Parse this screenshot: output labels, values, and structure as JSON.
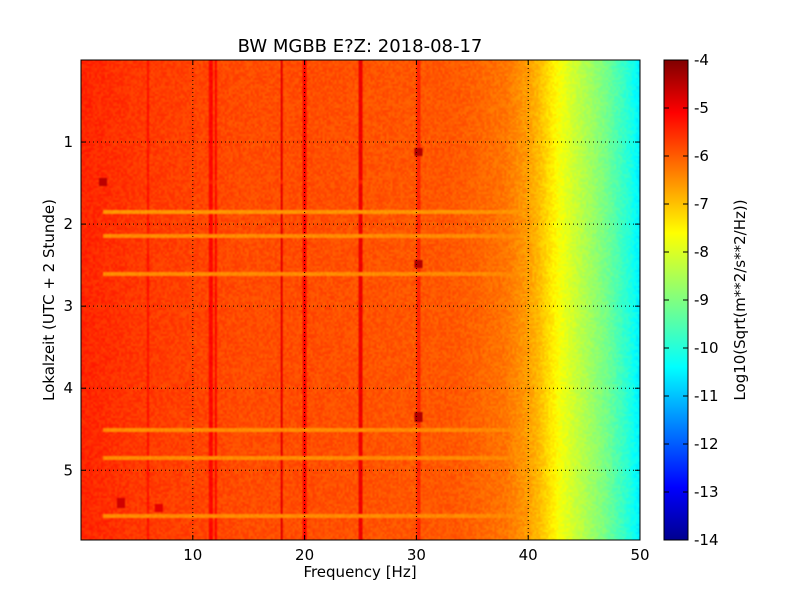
{
  "chart_data": {
    "type": "heatmap",
    "title": "BW MGBB E?Z: 2018-08-17",
    "xlabel": "Frequency [Hz]",
    "ylabel": "Lokalzeit (UTC + 2 Stunde)",
    "xlim": [
      0,
      50
    ],
    "ylim": [
      5.85,
      0
    ],
    "x_ticks": [
      10,
      20,
      30,
      40,
      50
    ],
    "y_ticks": [
      1,
      2,
      3,
      4,
      5
    ],
    "grid": true,
    "colormap": "jet",
    "colorbar": {
      "label": "Log10(Sqrt(m**2/s**2/Hz))",
      "range": [
        -14,
        -4
      ],
      "ticks": [
        -4,
        -5,
        -6,
        -7,
        -8,
        -9,
        -10,
        -11,
        -12,
        -13,
        -14
      ]
    },
    "frequency_profile": {
      "frequency_hz": [
        0,
        5,
        10,
        15,
        20,
        25,
        30,
        33,
        35,
        38,
        40,
        41,
        42,
        43,
        44,
        45,
        46,
        47,
        48,
        49,
        50
      ],
      "log10_amplitude": [
        -5.6,
        -5.8,
        -5.9,
        -6.0,
        -6.0,
        -6.05,
        -6.1,
        -6.1,
        -6.2,
        -6.4,
        -6.8,
        -7.1,
        -7.5,
        -7.9,
        -8.2,
        -8.5,
        -8.8,
        -9.1,
        -9.5,
        -9.9,
        -10.4
      ]
    },
    "vertical_lines": [
      {
        "frequency_hz": 6.0,
        "log10_amplitude": -5.4
      },
      {
        "frequency_hz": 11.6,
        "log10_amplitude": -5.3
      },
      {
        "frequency_hz": 12.0,
        "log10_amplitude": -5.3
      },
      {
        "frequency_hz": 17.9,
        "log10_amplitude": -5.0
      },
      {
        "frequency_hz": 20.0,
        "log10_amplitude": -5.3
      },
      {
        "frequency_hz": 25.0,
        "log10_amplitude": -5.1
      },
      {
        "frequency_hz": 30.2,
        "log10_amplitude": -5.6
      }
    ],
    "horizontal_bands": [
      {
        "time_h": 1.48,
        "log10_amplitude": -5.5
      },
      {
        "time_h": 1.85,
        "log10_amplitude": -6.7
      },
      {
        "time_h": 2.15,
        "log10_amplitude": -6.6
      },
      {
        "time_h": 2.6,
        "log10_amplitude": -6.6
      },
      {
        "time_h": 4.5,
        "log10_amplitude": -6.6
      },
      {
        "time_h": 4.85,
        "log10_amplitude": -6.6
      },
      {
        "time_h": 5.55,
        "log10_amplitude": -6.6
      }
    ],
    "spots": [
      {
        "frequency_hz": 2.0,
        "time_h": 1.48,
        "log10_amplitude": -4.6
      },
      {
        "frequency_hz": 30.2,
        "time_h": 1.12,
        "log10_amplitude": -4.5
      },
      {
        "frequency_hz": 30.2,
        "time_h": 2.48,
        "log10_amplitude": -4.5
      },
      {
        "frequency_hz": 30.2,
        "time_h": 4.35,
        "log10_amplitude": -4.5
      },
      {
        "frequency_hz": 3.5,
        "time_h": 5.4,
        "log10_amplitude": -4.8
      },
      {
        "frequency_hz": 7.0,
        "time_h": 5.45,
        "log10_amplitude": -5.0
      }
    ]
  }
}
